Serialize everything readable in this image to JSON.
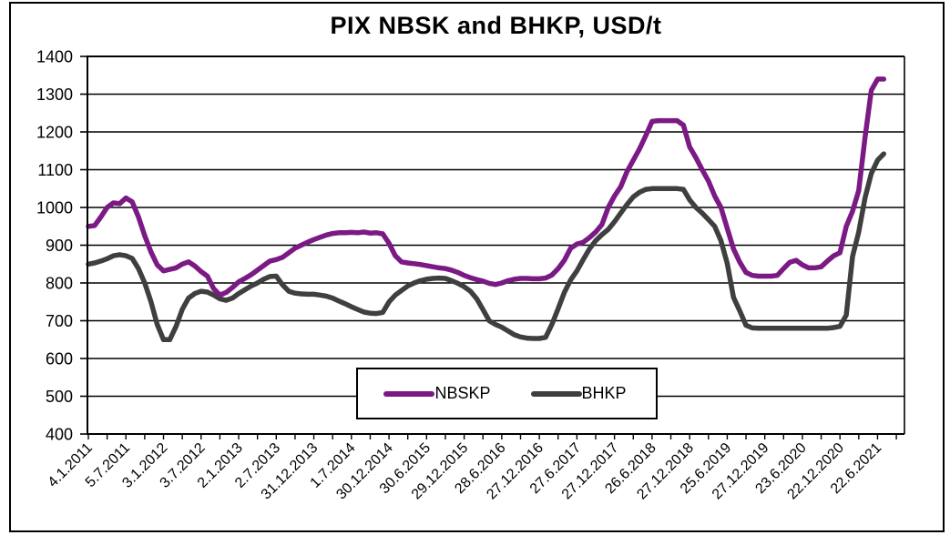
{
  "title": "PIX NBSK and BHKP, USD/t",
  "colors": {
    "nbskp": "#7B1A84",
    "bhkp": "#3F3F3F",
    "axis": "#000000",
    "background": "#FFFFFF"
  },
  "chart_data": {
    "type": "line",
    "title": "PIX NBSK and BHKP, USD/t",
    "unit": "USD/t",
    "ylim": [
      400,
      1400
    ],
    "y_ticks": [
      400,
      500,
      600,
      700,
      800,
      900,
      1000,
      1100,
      1200,
      1300,
      1400
    ],
    "x_tick_labels": [
      "4.1.2011",
      "5.7.2011",
      "3.1.2012",
      "3.7.2012",
      "2.1.2013",
      "2.7.2013",
      "31.12.2013",
      "1.7.2014",
      "30.12.2014",
      "30.6.2015",
      "29.12.2015",
      "28.6.2016",
      "27.12.2016",
      "27.6.2017",
      "27.12.2017",
      "26.6.2018",
      "27.12.2018",
      "25.6.2019",
      "27.12.2019",
      "23.6.2020",
      "22.12.2020",
      "22.6.2021"
    ],
    "grid": "horizontal gridlines every 100 USD/t",
    "legend": {
      "position": "inside-bottom-center",
      "entries": [
        "NBSKP",
        "BHKP"
      ]
    },
    "sampling_note": "values estimated monthly from the weekly price lines",
    "x_months": [
      "2011-01",
      "2011-02",
      "2011-03",
      "2011-04",
      "2011-05",
      "2011-06",
      "2011-07",
      "2011-08",
      "2011-09",
      "2011-10",
      "2011-11",
      "2011-12",
      "2012-01",
      "2012-02",
      "2012-03",
      "2012-04",
      "2012-05",
      "2012-06",
      "2012-07",
      "2012-08",
      "2012-09",
      "2012-10",
      "2012-11",
      "2012-12",
      "2013-01",
      "2013-02",
      "2013-03",
      "2013-04",
      "2013-05",
      "2013-06",
      "2013-07",
      "2013-08",
      "2013-09",
      "2013-10",
      "2013-11",
      "2013-12",
      "2014-01",
      "2014-02",
      "2014-03",
      "2014-04",
      "2014-05",
      "2014-06",
      "2014-07",
      "2014-08",
      "2014-09",
      "2014-10",
      "2014-11",
      "2014-12",
      "2015-01",
      "2015-02",
      "2015-03",
      "2015-04",
      "2015-05",
      "2015-06",
      "2015-07",
      "2015-08",
      "2015-09",
      "2015-10",
      "2015-11",
      "2015-12",
      "2016-01",
      "2016-02",
      "2016-03",
      "2016-04",
      "2016-05",
      "2016-06",
      "2016-07",
      "2016-08",
      "2016-09",
      "2016-10",
      "2016-11",
      "2016-12",
      "2017-01",
      "2017-02",
      "2017-03",
      "2017-04",
      "2017-05",
      "2017-06",
      "2017-07",
      "2017-08",
      "2017-09",
      "2017-10",
      "2017-11",
      "2017-12",
      "2018-01",
      "2018-02",
      "2018-03",
      "2018-04",
      "2018-05",
      "2018-06",
      "2018-07",
      "2018-08",
      "2018-09",
      "2018-10",
      "2018-11",
      "2018-12",
      "2019-01",
      "2019-02",
      "2019-03",
      "2019-04",
      "2019-05",
      "2019-06",
      "2019-07",
      "2019-08",
      "2019-09",
      "2019-10",
      "2019-11",
      "2019-12",
      "2020-01",
      "2020-02",
      "2020-03",
      "2020-04",
      "2020-05",
      "2020-06",
      "2020-07",
      "2020-08",
      "2020-09",
      "2020-10",
      "2020-11",
      "2020-12",
      "2021-01",
      "2021-02",
      "2021-03",
      "2021-04",
      "2021-05",
      "2021-06",
      "2021-07",
      "2021-08"
    ],
    "series": [
      {
        "name": "NBSKP",
        "color": "#7B1A84",
        "values": [
          950,
          952,
          975,
          1000,
          1012,
          1010,
          1025,
          1015,
          975,
          925,
          882,
          848,
          832,
          836,
          840,
          850,
          856,
          845,
          830,
          818,
          785,
          768,
          775,
          788,
          803,
          812,
          822,
          834,
          846,
          858,
          862,
          868,
          880,
          892,
          900,
          908,
          915,
          921,
          927,
          931,
          933,
          933,
          934,
          933,
          935,
          932,
          933,
          930,
          905,
          872,
          856,
          853,
          851,
          849,
          846,
          843,
          840,
          838,
          834,
          828,
          820,
          814,
          809,
          805,
          799,
          796,
          800,
          806,
          810,
          812,
          812,
          811,
          811,
          813,
          821,
          838,
          860,
          892,
          903,
          908,
          920,
          935,
          955,
          1000,
          1030,
          1055,
          1095,
          1125,
          1155,
          1190,
          1228,
          1230,
          1230,
          1230,
          1230,
          1218,
          1160,
          1132,
          1100,
          1070,
          1030,
          1000,
          945,
          890,
          855,
          828,
          820,
          818,
          818,
          818,
          820,
          838,
          855,
          860,
          848,
          840,
          840,
          843,
          858,
          872,
          880,
          950,
          990,
          1045,
          1185,
          1310,
          1340,
          1340
        ]
      },
      {
        "name": "BHKP",
        "color": "#3F3F3F",
        "values": [
          850,
          853,
          858,
          864,
          872,
          875,
          872,
          865,
          838,
          800,
          750,
          690,
          650,
          650,
          685,
          730,
          760,
          772,
          778,
          776,
          768,
          758,
          754,
          760,
          772,
          782,
          792,
          800,
          810,
          817,
          818,
          795,
          778,
          773,
          771,
          770,
          770,
          768,
          765,
          760,
          752,
          745,
          737,
          730,
          723,
          720,
          719,
          722,
          750,
          768,
          780,
          792,
          800,
          806,
          810,
          812,
          813,
          812,
          806,
          799,
          790,
          778,
          758,
          730,
          700,
          690,
          683,
          673,
          663,
          657,
          654,
          653,
          653,
          656,
          690,
          732,
          775,
          808,
          832,
          862,
          890,
          912,
          928,
          942,
          962,
          985,
          1008,
          1028,
          1040,
          1048,
          1050,
          1050,
          1050,
          1050,
          1050,
          1048,
          1020,
          1000,
          985,
          968,
          950,
          912,
          852,
          762,
          726,
          688,
          681,
          680,
          680,
          680,
          680,
          680,
          680,
          680,
          680,
          680,
          680,
          680,
          680,
          682,
          685,
          715,
          870,
          935,
          1025,
          1090,
          1125,
          1142
        ]
      }
    ]
  }
}
